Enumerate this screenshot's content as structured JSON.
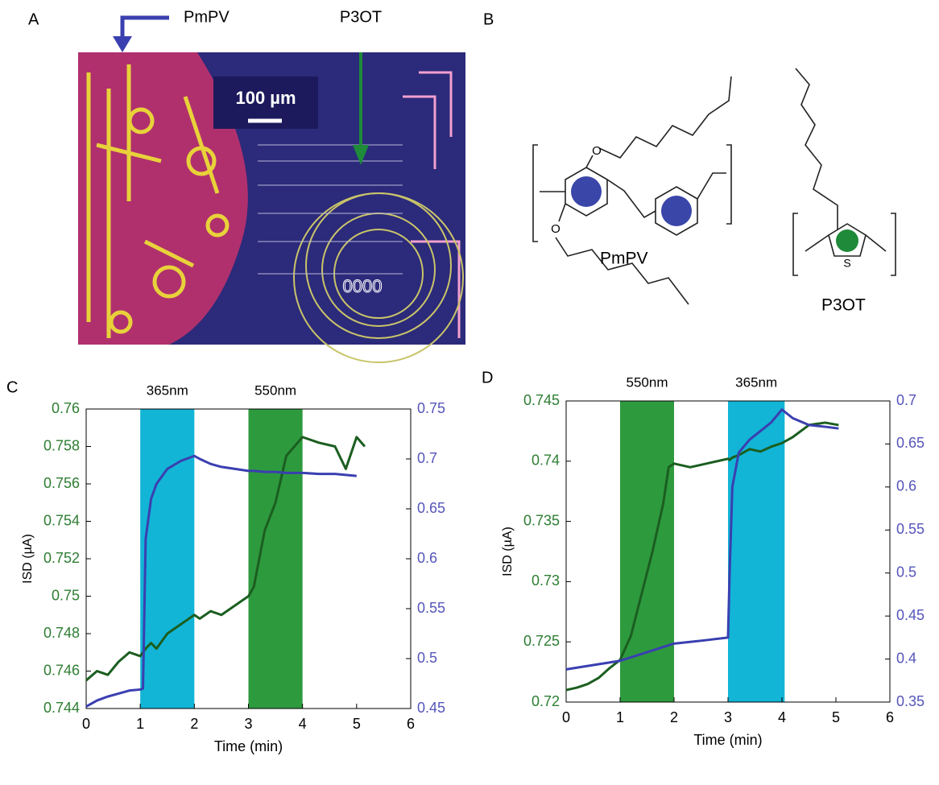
{
  "panels": {
    "a": {
      "label": "A",
      "pointer_labels": [
        "PmPV",
        "P3OT"
      ],
      "scale_bar": "100 µm",
      "overlay_text": "0000"
    },
    "b": {
      "label": "B",
      "polymers": [
        "PmPV",
        "P3OT"
      ],
      "atoms": [
        "O",
        "O",
        "S"
      ]
    }
  },
  "chart_data": [
    {
      "type": "line",
      "panel_label": "C",
      "xlabel": "Time (min)",
      "ylabel": "ISD (µA)",
      "xlim": [
        0,
        6
      ],
      "xticks": [
        0,
        1,
        2,
        3,
        4,
        5,
        6
      ],
      "ylim": [
        0.744,
        0.76
      ],
      "yticks": [
        0.744,
        0.746,
        0.748,
        0.75,
        0.752,
        0.754,
        0.756,
        0.758,
        0.76
      ],
      "ytick_color": "#2e7d32",
      "y2lim": [
        0.45,
        0.75
      ],
      "y2ticks": [
        0.45,
        0.5,
        0.55,
        0.6,
        0.65,
        0.7,
        0.75
      ],
      "y2tick_color": "#5555bb",
      "bands": [
        {
          "label": "365nm",
          "x": [
            1,
            2
          ],
          "color": "#12b5d6"
        },
        {
          "label": "550nm",
          "x": [
            3,
            4
          ],
          "color": "#2e9a3e"
        }
      ],
      "x": [
        0,
        0.2,
        0.4,
        0.6,
        0.8,
        1.0,
        1.05,
        1.1,
        1.2,
        1.3,
        1.5,
        1.75,
        2.0,
        2.1,
        2.3,
        2.5,
        2.75,
        3.0,
        3.1,
        3.3,
        3.5,
        3.7,
        4.0,
        4.3,
        4.6,
        4.8,
        5.0,
        5.15
      ],
      "series": [
        {
          "color": "#1b5e20",
          "axis": "y",
          "values": [
            0.7455,
            0.746,
            0.7458,
            0.7465,
            0.747,
            0.7468,
            0.747,
            0.7472,
            0.7475,
            0.7472,
            0.748,
            0.7485,
            0.749,
            0.7488,
            0.7492,
            0.749,
            0.7495,
            0.75,
            0.7505,
            0.7535,
            0.755,
            0.7575,
            0.7585,
            0.7582,
            0.758,
            0.7568,
            0.7585,
            0.758
          ]
        },
        {
          "color": "#3a3fb0",
          "axis": "y2",
          "values": [
            0.452,
            0.458,
            0.462,
            0.465,
            0.468,
            0.469,
            0.47,
            0.62,
            0.66,
            0.675,
            0.69,
            0.698,
            0.703,
            0.7,
            0.695,
            0.692,
            0.69,
            0.688,
            0.688,
            0.687,
            0.687,
            0.686,
            0.686,
            0.685,
            0.685,
            0.684,
            0.683,
            null
          ]
        }
      ]
    },
    {
      "type": "line",
      "panel_label": "D",
      "xlabel": "Time (min)",
      "ylabel": "ISD (µA)",
      "xlim": [
        0,
        6
      ],
      "xticks": [
        0,
        1,
        2,
        3,
        4,
        5,
        6
      ],
      "ylim": [
        0.72,
        0.745
      ],
      "yticks": [
        0.72,
        0.725,
        0.73,
        0.735,
        0.74,
        0.745
      ],
      "ytick_color": "#2e7d32",
      "y2lim": [
        0.35,
        0.7
      ],
      "y2ticks": [
        0.35,
        0.4,
        0.45,
        0.5,
        0.55,
        0.6,
        0.65,
        0.7
      ],
      "y2tick_color": "#5555bb",
      "bands": [
        {
          "label": "550nm",
          "x": [
            1,
            2
          ],
          "color": "#2e9a3e"
        },
        {
          "label": "365nm",
          "x": [
            3,
            4.05
          ],
          "color": "#12b5d6"
        }
      ],
      "x": [
        0,
        0.2,
        0.4,
        0.6,
        0.8,
        1.0,
        1.2,
        1.4,
        1.6,
        1.8,
        1.9,
        2.0,
        2.3,
        2.6,
        3.0,
        3.03,
        3.08,
        3.2,
        3.4,
        3.6,
        3.8,
        4.0,
        4.2,
        4.5,
        4.8,
        5.05
      ],
      "series": [
        {
          "color": "#1b5e20",
          "axis": "y",
          "values": [
            0.721,
            0.7212,
            0.7215,
            0.722,
            0.7228,
            0.7235,
            0.7255,
            0.729,
            0.7325,
            0.7365,
            0.7395,
            0.7398,
            0.7395,
            0.7398,
            0.7402,
            0.7401,
            0.7403,
            0.7405,
            0.741,
            0.7408,
            0.7412,
            0.7415,
            0.742,
            0.743,
            0.7432,
            0.743
          ]
        },
        {
          "color": "#3a3fb0",
          "axis": "y2",
          "values": [
            0.388,
            0.39,
            0.392,
            0.394,
            0.396,
            0.398,
            0.402,
            0.406,
            0.41,
            0.414,
            0.416,
            0.418,
            0.42,
            0.422,
            0.425,
            0.5,
            0.6,
            0.64,
            0.655,
            0.665,
            0.675,
            0.69,
            0.68,
            0.672,
            0.67,
            0.668
          ]
        }
      ]
    }
  ]
}
